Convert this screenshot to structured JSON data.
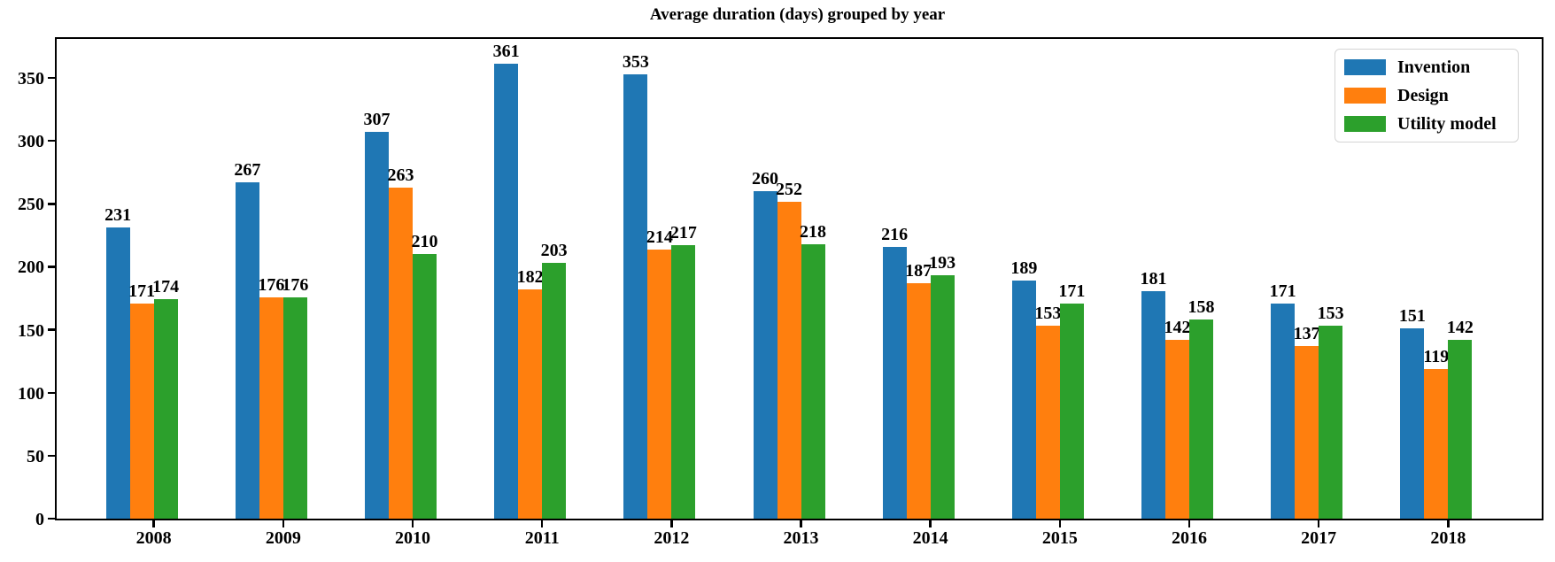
{
  "chart_data": {
    "type": "bar",
    "title": "Average duration (days) grouped by year",
    "categories": [
      "2008",
      "2009",
      "2010",
      "2011",
      "2012",
      "2013",
      "2014",
      "2015",
      "2016",
      "2017",
      "2018"
    ],
    "series": [
      {
        "name": "Invention",
        "color": "#1f77b4",
        "values": [
          231,
          267,
          307,
          361,
          353,
          260,
          216,
          189,
          181,
          171,
          151
        ]
      },
      {
        "name": "Design",
        "color": "#ff7f0e",
        "values": [
          171,
          176,
          263,
          182,
          214,
          252,
          187,
          153,
          142,
          137,
          119
        ]
      },
      {
        "name": "Utility model",
        "color": "#2ca02c",
        "values": [
          174,
          176,
          210,
          203,
          217,
          218,
          193,
          171,
          158,
          153,
          142
        ]
      }
    ],
    "xlabel": "",
    "ylabel": "",
    "ylim": [
      0,
      381
    ],
    "yticks": [
      0,
      50,
      100,
      150,
      200,
      250,
      300,
      350
    ],
    "grid": false,
    "legend_position": "upper right",
    "bar_value_labels": true,
    "axis_color": "#000000",
    "background_color": "#ffffff"
  }
}
